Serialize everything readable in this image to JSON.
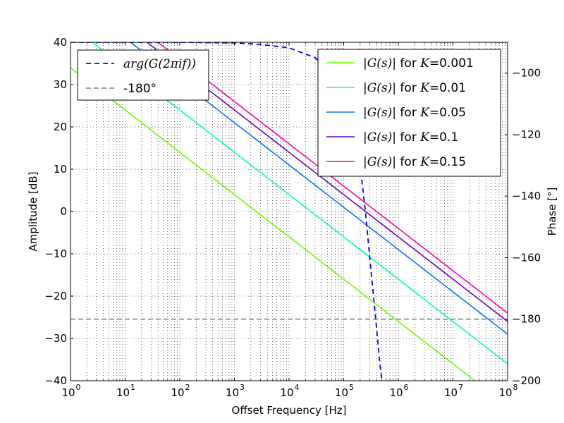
{
  "chart_data": {
    "type": "line",
    "title": "",
    "xlabel": "Offset Frequency [Hz]",
    "ylabel": "Amplitude [dB]",
    "y2label": "Phase [°]",
    "xscale": "log",
    "xlim": [
      1,
      100000000
    ],
    "ylim": [
      -40,
      40
    ],
    "y2lim": [
      -200,
      -90
    ],
    "grid": true,
    "x_ticks": [
      {
        "value": 1,
        "base": "10",
        "exp": "0"
      },
      {
        "value": 10,
        "base": "10",
        "exp": "1"
      },
      {
        "value": 100,
        "base": "10",
        "exp": "2"
      },
      {
        "value": 1000,
        "base": "10",
        "exp": "3"
      },
      {
        "value": 10000,
        "base": "10",
        "exp": "4"
      },
      {
        "value": 100000,
        "base": "10",
        "exp": "5"
      },
      {
        "value": 1000000,
        "base": "10",
        "exp": "6"
      },
      {
        "value": 10000000,
        "base": "10",
        "exp": "7"
      },
      {
        "value": 100000000,
        "base": "10",
        "exp": "8"
      }
    ],
    "y_ticks": [
      40,
      30,
      20,
      10,
      0,
      -10,
      -20,
      -30,
      -40
    ],
    "y_tick_labels": [
      "40",
      "30",
      "20",
      "10",
      "0",
      "−10",
      "−20",
      "−30",
      "−40"
    ],
    "y2_ticks": [
      -100,
      -120,
      -140,
      -160,
      -180,
      -200
    ],
    "y2_tick_labels": [
      "−100",
      "−120",
      "−140",
      "−160",
      "−180",
      "−200"
    ],
    "amplitude_series": [
      {
        "name_math": "|G(s)|",
        "name_text": " for ",
        "name_k": "K",
        "name_value": "=0.001",
        "color": "#66ff00",
        "x": [
          1,
          10,
          100,
          1000,
          10000,
          100000,
          1000000,
          10000000,
          100000000
        ],
        "y": [
          34,
          24,
          14,
          4,
          -6,
          -16,
          -26,
          -36,
          -46
        ]
      },
      {
        "name_math": "|G(s)|",
        "name_text": " for ",
        "name_k": "K",
        "name_value": "=0.01",
        "color": "#00ffaa",
        "x": [
          1,
          10,
          100,
          1000,
          10000,
          100000,
          1000000,
          10000000,
          100000000
        ],
        "y": [
          44,
          34,
          24,
          14,
          4,
          -6,
          -16,
          -26,
          -36
        ]
      },
      {
        "name_math": "|G(s)|",
        "name_text": " for ",
        "name_k": "K",
        "name_value": "=0.05",
        "color": "#0077ff",
        "x": [
          1,
          10,
          100,
          1000,
          10000,
          100000,
          1000000,
          10000000,
          100000000
        ],
        "y": [
          51,
          41,
          31,
          21,
          11,
          1,
          -9,
          -19,
          -29
        ]
      },
      {
        "name_math": "|G(s)|",
        "name_text": " for ",
        "name_k": "K",
        "name_value": "=0.1",
        "color": "#6600cc",
        "x": [
          1,
          10,
          100,
          1000,
          10000,
          100000,
          1000000,
          10000000,
          100000000
        ],
        "y": [
          54,
          44,
          34,
          24,
          14,
          4,
          -6,
          -16,
          -26
        ]
      },
      {
        "name_math": "|G(s)|",
        "name_text": " for ",
        "name_k": "K",
        "name_value": "=0.15",
        "color": "#ff00aa",
        "x": [
          1,
          10,
          100,
          1000,
          10000,
          100000,
          1000000,
          10000000,
          100000000
        ],
        "y": [
          56,
          46,
          36,
          26,
          16,
          6,
          -4,
          -14,
          -24
        ]
      }
    ],
    "phase_series": [
      {
        "name_math": "arg(G(2πif))",
        "color": "#0000ee",
        "dash": "dashed",
        "x": [
          1,
          10,
          100,
          1000,
          3000,
          10000,
          30000,
          60000,
          100000,
          150000,
          200000,
          250000,
          300000,
          350000,
          400000,
          450000,
          500000
        ],
        "y": [
          -90,
          -90,
          -90,
          -90.2,
          -90.7,
          -91.8,
          -95,
          -100,
          -108,
          -118,
          -130,
          -145,
          -160,
          -172,
          -183,
          -193,
          -200
        ]
      }
    ],
    "reference_line": {
      "name": "-180°",
      "color": "#808080",
      "dash": "dashed",
      "y": -180
    }
  }
}
